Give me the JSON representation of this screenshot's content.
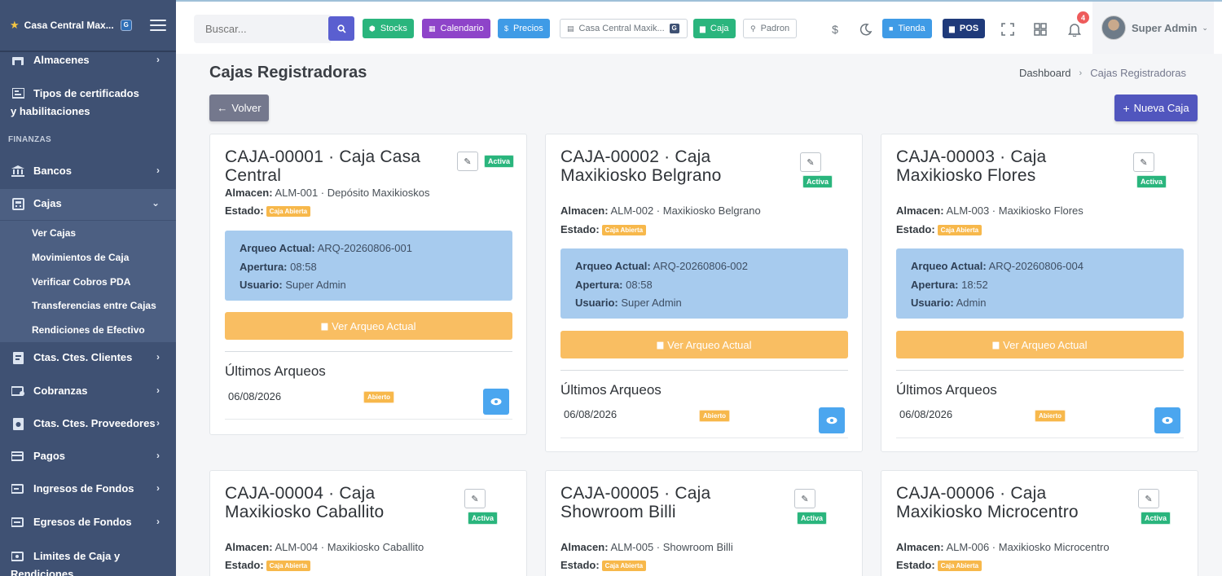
{
  "sidebar": {
    "brand_name": "Casa Central Max...",
    "brand_badge": "G",
    "items": [
      {
        "label": "Almacenes",
        "icon": "warehouse-icon"
      },
      {
        "label": "Tipos de certificados y habilitaciones",
        "icon": "certificate-icon"
      },
      {
        "label": "Bancos",
        "icon": "bank-icon"
      },
      {
        "label": "Cajas",
        "icon": "cash-register-icon"
      },
      {
        "label": "Ctas. Ctes. Clientes",
        "icon": "clients-account-icon"
      },
      {
        "label": "Cobranzas",
        "icon": "collections-icon"
      },
      {
        "label": "Ctas. Ctes. Proveedores",
        "icon": "suppliers-account-icon"
      },
      {
        "label": "Pagos",
        "icon": "payments-icon"
      },
      {
        "label": "Ingresos de Fondos",
        "icon": "funds-in-icon"
      },
      {
        "label": "Egresos de Fondos",
        "icon": "funds-out-icon"
      },
      {
        "label": "Limites de Caja y Rendiciones",
        "icon": "limits-icon"
      }
    ],
    "section_finanzas": "FINANZAS",
    "cajas_sub": [
      {
        "label": "Ver Cajas"
      },
      {
        "label": "Movimientos de Caja"
      },
      {
        "label": "Verificar Cobros PDA"
      },
      {
        "label": "Transferencias entre Cajas"
      },
      {
        "label": "Rendiciones de Efectivo"
      }
    ]
  },
  "topbar": {
    "search_placeholder": "Buscar...",
    "buttons": {
      "stocks": "Stocks",
      "calendario": "Calendario",
      "precios": "Precios",
      "store_select": "Casa Central Maxik...",
      "store_badge": "G",
      "caja": "Caja",
      "padron": "Padron",
      "tienda": "Tienda",
      "pos": "POS"
    },
    "notifications_count": "4",
    "user_name": "Super Admin"
  },
  "colors": {
    "sidebar_bg": "#3f5173",
    "primary": "#5156be",
    "success": "#2ab57d",
    "warning": "#f9be62",
    "info_box": "#a7cbee",
    "eye_button": "#4ba6ef"
  },
  "page": {
    "title": "Cajas Registradoras",
    "breadcrumb": [
      "Dashboard",
      "Cajas Registradoras"
    ],
    "back_label": "Volver",
    "new_label": "Nueva Caja"
  },
  "labels": {
    "almacen": "Almacen:",
    "estado": "Estado:",
    "arqueo_actual": "Arqueo Actual:",
    "apertura": "Apertura:",
    "usuario": "Usuario:",
    "ver_arqueo": "Ver Arqueo Actual",
    "ultimos": "Últimos Arqueos",
    "activa": "Activa",
    "caja_abierta": "Caja Abierta",
    "abierto": "Abierto"
  },
  "cajas": [
    {
      "title": "CAJA-00001 · Caja Casa Central",
      "almacen": "ALM-001 · Depósito Maxikioskos",
      "arqueo": "ARQ-20260806-001",
      "apertura": "08:58",
      "usuario": "Super Admin",
      "ultimo_fecha": "06/08/2026"
    },
    {
      "title": "CAJA-00002 · Caja Maxikiosko Belgrano",
      "almacen": "ALM-002 · Maxikiosko Belgrano",
      "arqueo": "ARQ-20260806-002",
      "apertura": "08:58",
      "usuario": "Super Admin",
      "ultimo_fecha": "06/08/2026"
    },
    {
      "title": "CAJA-00003 · Caja Maxikiosko Flores",
      "almacen": "ALM-003 · Maxikiosko Flores",
      "arqueo": "ARQ-20260806-004",
      "apertura": "18:52",
      "usuario": "Admin",
      "ultimo_fecha": "06/08/2026"
    },
    {
      "title": "CAJA-00004 · Caja Maxikiosko Caballito",
      "almacen": "ALM-004 · Maxikiosko Caballito"
    },
    {
      "title": "CAJA-00005 · Caja Showroom Billi",
      "almacen": "ALM-005 · Showroom Billi"
    },
    {
      "title": "CAJA-00006 · Caja Maxikiosko Microcentro",
      "almacen": "ALM-006 · Maxikiosko Microcentro"
    }
  ]
}
